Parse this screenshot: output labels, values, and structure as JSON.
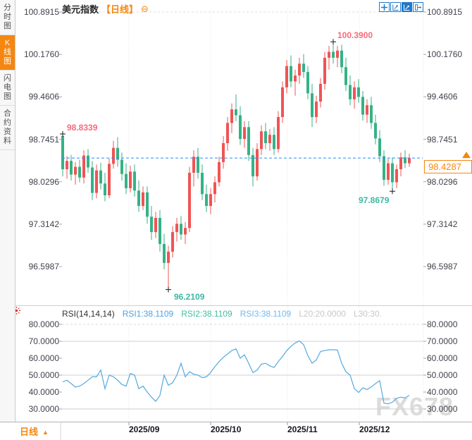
{
  "sidebar": {
    "items": [
      {
        "label": "分时图",
        "active": false
      },
      {
        "label": "K线图",
        "active": true
      },
      {
        "label": "闪电图",
        "active": false
      },
      {
        "label": "合约资料",
        "active": false
      }
    ]
  },
  "header": {
    "symbol": "美元指数",
    "period_tag": "【日线】",
    "collapse_glyph": "⊖"
  },
  "toolbar": {
    "icons": [
      {
        "name": "crosshair-tool",
        "active": false
      },
      {
        "name": "zoom-horizontal-tool",
        "active": false
      },
      {
        "name": "zoom-vertical-tool",
        "active": true
      },
      {
        "name": "exit-fullscreen-tool",
        "active": false
      }
    ]
  },
  "price_panel": {
    "axis_ticks": [
      "100.8915",
      "100.1760",
      "99.4606",
      "98.7451",
      "98.0296",
      "97.3142",
      "96.5987"
    ],
    "annotations": {
      "first_high": "98.8339",
      "period_high": "100.3900",
      "period_low": "96.2109",
      "recent_low": "97.8679"
    },
    "current_price": "98.4287"
  },
  "rsi_panel": {
    "legend": {
      "title": "RSI(14,14,14)",
      "rsi1": "RSI1:38.1109",
      "rsi2": "RSI2:38.1109",
      "rsi3": "RSI3:38.1109",
      "l20": "L20:20.0000",
      "l30": "L30:30."
    },
    "axis_ticks": [
      "80.0000",
      "70.0000",
      "60.0000",
      "50.0000",
      "40.0000",
      "30.0000"
    ]
  },
  "footer": {
    "period_label": "日线",
    "dates": [
      "2025/09",
      "2025/10",
      "2025/11",
      "2025/12"
    ]
  },
  "watermark": "FX678",
  "colors": {
    "up": "#ef5455",
    "down": "#35b286",
    "accent_orange": "#f5860f",
    "high_label": "#f56b7a",
    "low_label": "#3db9a4",
    "price_line": "#1e8fff",
    "rsi_line": "#55a9dd",
    "icon_blue": "#2079c8",
    "rsi1_text": "#4ca1e6",
    "rsi2_text": "#3fc0a2",
    "rsi3_text": "#6fb9ef",
    "muted_text": "#c8c8c8",
    "axis_text": "#40434c",
    "grid": "#dcdcdc"
  },
  "chart_data": {
    "type": "candlestick",
    "title": "美元指数 日线 (US Dollar Index, daily)",
    "x_tick_labels": [
      "2025/09",
      "2025/10",
      "2025/11",
      "2025/12"
    ],
    "y_axis_ticks": [
      100.8915,
      100.176,
      99.4606,
      98.7451,
      98.0296,
      97.3142,
      96.5987
    ],
    "y_axis_range": [
      96.5987,
      100.8915
    ],
    "marked_points": {
      "first_high": 98.8339,
      "period_high": 100.39,
      "period_low": 96.2109,
      "recent_low": 97.8679,
      "last_close": 98.4287
    },
    "candles_ohlc": [
      [
        98.8,
        98.8339,
        98.12,
        98.24
      ],
      [
        98.24,
        98.46,
        98.08,
        98.38
      ],
      [
        98.38,
        98.48,
        98.05,
        98.15
      ],
      [
        98.15,
        98.36,
        97.98,
        98.28
      ],
      [
        98.28,
        98.4,
        98.02,
        98.1
      ],
      [
        98.1,
        98.56,
        98.0,
        98.47
      ],
      [
        98.47,
        98.58,
        98.18,
        98.27
      ],
      [
        98.27,
        98.38,
        97.72,
        97.84
      ],
      [
        97.84,
        98.32,
        97.75,
        98.22
      ],
      [
        98.22,
        98.35,
        97.9,
        98.0
      ],
      [
        98.0,
        98.18,
        97.7,
        97.8
      ],
      [
        97.8,
        98.42,
        97.75,
        98.33
      ],
      [
        98.33,
        98.72,
        98.25,
        98.6
      ],
      [
        98.6,
        98.78,
        98.28,
        98.4
      ],
      [
        98.4,
        98.52,
        98.05,
        98.16
      ],
      [
        98.16,
        98.34,
        97.82,
        97.92
      ],
      [
        97.92,
        98.3,
        97.85,
        98.2
      ],
      [
        98.2,
        98.32,
        97.78,
        97.88
      ],
      [
        97.88,
        98.05,
        97.52,
        97.62
      ],
      [
        97.62,
        97.95,
        97.55,
        97.85
      ],
      [
        97.85,
        97.95,
        97.32,
        97.44
      ],
      [
        97.44,
        97.62,
        97.05,
        97.18
      ],
      [
        97.18,
        97.52,
        97.08,
        97.42
      ],
      [
        97.42,
        97.55,
        96.85,
        96.98
      ],
      [
        96.98,
        97.15,
        96.55,
        96.66
      ],
      [
        96.66,
        96.95,
        96.2109,
        96.85
      ],
      [
        96.85,
        97.28,
        96.75,
        97.18
      ],
      [
        97.18,
        97.42,
        97.02,
        97.32
      ],
      [
        97.32,
        97.45,
        97.05,
        97.14
      ],
      [
        97.14,
        97.35,
        96.98,
        97.25
      ],
      [
        97.25,
        98.28,
        97.18,
        98.18
      ],
      [
        98.18,
        98.56,
        97.95,
        98.45
      ],
      [
        98.45,
        98.6,
        98.08,
        98.18
      ],
      [
        98.18,
        98.32,
        97.72,
        97.82
      ],
      [
        97.82,
        97.98,
        97.52,
        97.62
      ],
      [
        97.62,
        97.92,
        97.48,
        97.82
      ],
      [
        97.82,
        98.12,
        97.68,
        98.02
      ],
      [
        98.02,
        98.45,
        97.95,
        98.36
      ],
      [
        98.36,
        98.8,
        98.25,
        98.68
      ],
      [
        98.68,
        99.12,
        98.55,
        99.02
      ],
      [
        99.02,
        99.35,
        98.85,
        99.25
      ],
      [
        99.25,
        99.5,
        99.05,
        99.15
      ],
      [
        99.15,
        99.3,
        98.65,
        98.75
      ],
      [
        98.75,
        99.05,
        98.6,
        98.95
      ],
      [
        98.95,
        99.05,
        98.38,
        98.48
      ],
      [
        98.48,
        98.6,
        97.95,
        98.12
      ],
      [
        98.12,
        98.68,
        98.05,
        98.58
      ],
      [
        98.58,
        98.98,
        98.48,
        98.88
      ],
      [
        98.88,
        99.02,
        98.58,
        98.68
      ],
      [
        98.68,
        98.92,
        98.55,
        98.82
      ],
      [
        98.82,
        98.95,
        98.48,
        98.58
      ],
      [
        98.58,
        99.22,
        98.52,
        99.12
      ],
      [
        99.12,
        99.72,
        99.02,
        99.62
      ],
      [
        99.62,
        100.08,
        99.52,
        99.98
      ],
      [
        99.98,
        100.16,
        99.62,
        99.72
      ],
      [
        99.72,
        99.92,
        99.48,
        99.82
      ],
      [
        99.82,
        100.12,
        99.68,
        100.02
      ],
      [
        100.02,
        100.18,
        99.78,
        99.88
      ],
      [
        99.88,
        99.98,
        99.42,
        99.52
      ],
      [
        99.52,
        99.68,
        98.95,
        99.12
      ],
      [
        99.12,
        99.48,
        99.02,
        99.38
      ],
      [
        99.38,
        99.78,
        99.28,
        99.68
      ],
      [
        99.68,
        100.22,
        99.58,
        100.12
      ],
      [
        100.12,
        100.32,
        99.92,
        100.22
      ],
      [
        100.22,
        100.39,
        100.02,
        100.12
      ],
      [
        100.12,
        100.32,
        99.96,
        100.24
      ],
      [
        100.24,
        100.34,
        99.86,
        99.96
      ],
      [
        99.96,
        100.12,
        99.56,
        99.66
      ],
      [
        99.66,
        99.82,
        99.32,
        99.42
      ],
      [
        99.42,
        99.72,
        99.26,
        99.62
      ],
      [
        99.62,
        99.76,
        99.36,
        99.46
      ],
      [
        99.46,
        99.56,
        99.06,
        99.16
      ],
      [
        99.16,
        99.42,
        99.02,
        99.32
      ],
      [
        99.32,
        99.46,
        98.92,
        99.02
      ],
      [
        99.02,
        99.16,
        98.66,
        98.76
      ],
      [
        98.76,
        98.9,
        98.36,
        98.46
      ],
      [
        98.46,
        98.56,
        97.96,
        98.06
      ],
      [
        98.06,
        98.42,
        97.98,
        98.34
      ],
      [
        98.34,
        98.44,
        97.8679,
        98.02
      ],
      [
        98.02,
        98.32,
        97.92,
        98.24
      ],
      [
        98.24,
        98.52,
        98.12,
        98.44
      ],
      [
        98.44,
        98.56,
        98.26,
        98.34
      ],
      [
        98.34,
        98.5,
        98.28,
        98.4287
      ]
    ],
    "indicator": {
      "name": "RSI",
      "params": [
        14,
        14,
        14
      ],
      "rsi1": 38.1109,
      "rsi2": 38.1109,
      "rsi3": 38.1109,
      "levels": {
        "L20": 20.0,
        "L30": 30.0
      },
      "axis_range": [
        30,
        80
      ],
      "axis_ticks": [
        80,
        70,
        60,
        50,
        40,
        30
      ],
      "values": [
        46,
        47,
        45,
        43,
        43.5,
        45,
        47,
        49,
        49,
        53,
        42,
        50,
        49,
        47,
        44.5,
        43.5,
        51,
        50,
        42,
        43.5,
        40,
        37,
        34.5,
        38,
        50,
        44,
        45.5,
        50,
        57,
        49,
        52,
        50.5,
        50,
        48.5,
        49,
        51.5,
        55,
        58,
        60.5,
        62.5,
        64.5,
        65.5,
        60,
        62,
        57,
        51.5,
        53,
        56.5,
        57,
        55.5,
        54.5,
        58,
        61,
        64.5,
        67,
        69,
        70.2,
        68,
        61.5,
        57,
        59,
        64,
        64.5,
        65,
        65,
        64.8,
        57,
        52,
        50,
        42,
        39.8,
        42.5,
        41.5,
        43,
        45,
        46.7,
        33.5,
        33,
        34,
        36.3,
        37,
        36.5,
        38.11
      ]
    }
  }
}
